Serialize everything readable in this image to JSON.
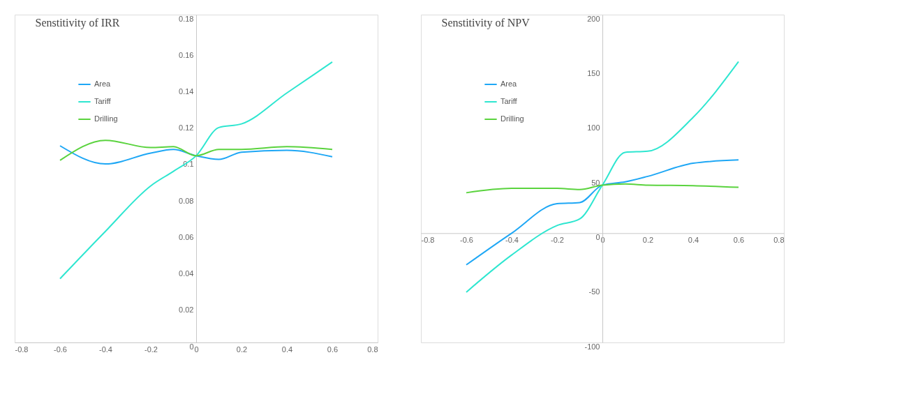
{
  "chart_data": [
    {
      "type": "line",
      "title": "Senstitivity of IRR",
      "x": [
        -0.6,
        -0.4,
        -0.2,
        -0.1,
        0,
        0.1,
        0.2,
        0.4,
        0.6
      ],
      "series": [
        {
          "name": "Area",
          "color": "#1ea7f5",
          "values": [
            0.108,
            0.098,
            0.104,
            0.106,
            0.1025,
            0.1005,
            0.1045,
            0.1055,
            0.102
          ]
        },
        {
          "name": "Tariff",
          "color": "#2ee6d0",
          "values": [
            0.035,
            0.061,
            0.086,
            0.094,
            0.1025,
            0.118,
            0.12,
            0.137,
            0.154
          ]
        },
        {
          "name": "Drilling",
          "color": "#5ad33e",
          "values": [
            0.1,
            0.111,
            0.107,
            0.1075,
            0.1025,
            0.106,
            0.106,
            0.1075,
            0.106
          ]
        }
      ],
      "xlim": [
        -0.8,
        0.8
      ],
      "xticks": [
        -0.8,
        -0.6,
        -0.4,
        -0.2,
        0,
        0.2,
        0.4,
        0.6,
        0.8
      ],
      "ylim": [
        0,
        0.18
      ],
      "yticks": [
        0,
        0.02,
        0.04,
        0.06,
        0.08,
        0.1,
        0.12,
        0.14,
        0.16,
        0.18
      ],
      "grid": false,
      "legend": "top left",
      "marker": "none",
      "line_style": "solid"
    },
    {
      "type": "line",
      "title": "Senstitivity of NPV",
      "x": [
        -0.6,
        -0.4,
        -0.2,
        -0.1,
        0,
        0.1,
        0.2,
        0.4,
        0.6
      ],
      "series": [
        {
          "name": "Area",
          "color": "#1ea7f5",
          "values": [
            -29,
            0,
            27,
            28,
            44,
            47,
            52,
            64,
            67
          ]
        },
        {
          "name": "Tariff",
          "color": "#2ee6d0",
          "values": [
            -54,
            -20,
            7,
            13,
            44,
            74,
            75,
            106,
            157
          ]
        },
        {
          "name": "Drilling",
          "color": "#5ad33e",
          "values": [
            37,
            41,
            41,
            40,
            44,
            45,
            44,
            43.5,
            42
          ]
        }
      ],
      "xlim": [
        -0.8,
        0.8
      ],
      "xticks": [
        -0.8,
        -0.6,
        -0.4,
        -0.2,
        0,
        0.2,
        0.4,
        0.6,
        0.8
      ],
      "ylim": [
        -100,
        200
      ],
      "yticks": [
        -100,
        -50,
        0,
        50,
        100,
        150,
        200
      ],
      "grid": false,
      "legend": "top left",
      "marker": "none",
      "line_style": "solid"
    }
  ]
}
